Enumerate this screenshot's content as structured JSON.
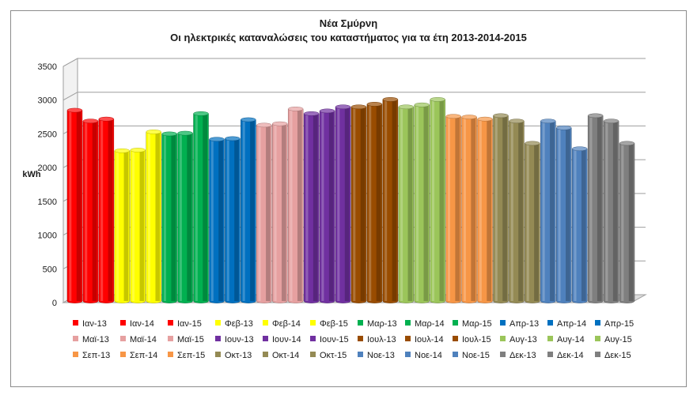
{
  "chart_data": {
    "type": "bar",
    "title": "Νέα Σμύρνη",
    "subtitle": "Οι ηλεκτρικές καταναλώσεις του καταστήματος για τα έτη 2013-2014-2015",
    "ylabel": "kWh",
    "ylim": [
      0,
      3500
    ],
    "yticks": [
      "0",
      "500",
      "1000",
      "1500",
      "2000",
      "2500",
      "3000",
      "3500"
    ],
    "grid": true,
    "legend_position": "bottom",
    "categories": [
      "Ιαν-13",
      "Ιαν-14",
      "Ιαν-15",
      "Φεβ-13",
      "Φεβ-14",
      "Φεβ-15",
      "Μαρ-13",
      "Μαρ-14",
      "Μαρ-15",
      "Απρ-13",
      "Απρ-14",
      "Απρ-15",
      "Μαϊ-13",
      "Μαϊ-14",
      "Μαϊ-15",
      "Ιουν-13",
      "Ιουν-14",
      "Ιουν-15",
      "Ιουλ-13",
      "Ιουλ-14",
      "Ιουλ-15",
      "Αυγ-13",
      "Αυγ-14",
      "Αυγ-15",
      "Σεπ-13",
      "Σεπ-14",
      "Σεπ-15",
      "Οκτ-13",
      "Οκτ-14",
      "Οκτ-15",
      "Νοε-13",
      "Νοε-14",
      "Νοε-15",
      "Δεκ-13",
      "Δεκ-14",
      "Δεκ-15"
    ],
    "values": [
      2920,
      2760,
      2790,
      2320,
      2330,
      2600,
      2570,
      2580,
      2870,
      2490,
      2500,
      2780,
      2700,
      2720,
      2940,
      2870,
      2910,
      2970,
      2970,
      3010,
      3080,
      2970,
      3000,
      3080,
      2830,
      2820,
      2790,
      2840,
      2760,
      2430,
      2760,
      2660,
      2350,
      2840,
      2760,
      2430
    ],
    "colors": [
      "#ff0000",
      "#ff0000",
      "#ff0000",
      "#ffff00",
      "#ffff00",
      "#ffff00",
      "#00b050",
      "#00b050",
      "#00b050",
      "#0070c0",
      "#0070c0",
      "#0070c0",
      "#e6a0a0",
      "#e6a0a0",
      "#e6a0a0",
      "#7030a0",
      "#7030a0",
      "#7030a0",
      "#994c00",
      "#994c00",
      "#994c00",
      "#9bc55a",
      "#9bc55a",
      "#9bc55a",
      "#f79646",
      "#f79646",
      "#f79646",
      "#948a54",
      "#948a54",
      "#948a54",
      "#4f81bd",
      "#4f81bd",
      "#4f81bd",
      "#7f7f7f",
      "#7f7f7f",
      "#7f7f7f"
    ]
  }
}
